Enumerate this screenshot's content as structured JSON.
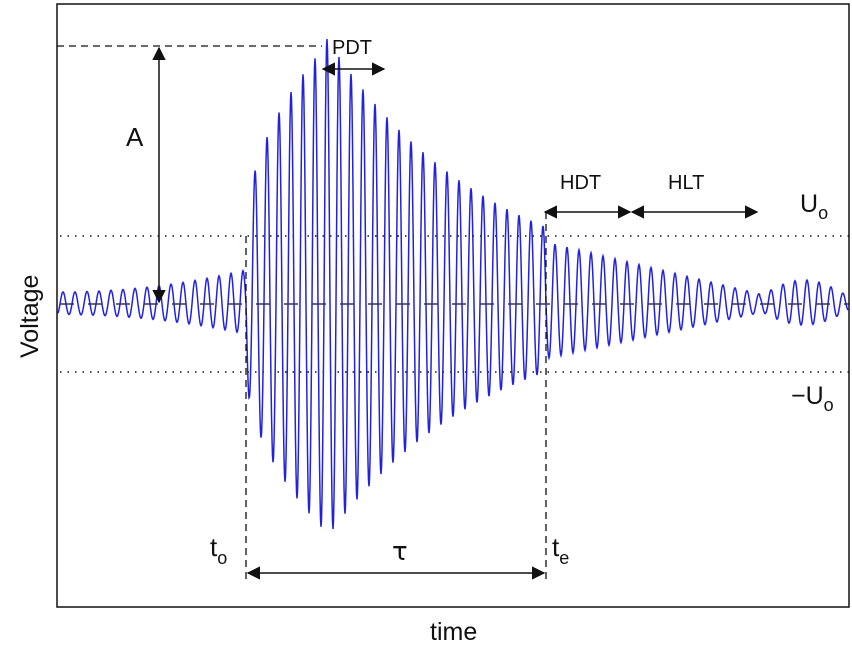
{
  "axes": {
    "xlabel": "time",
    "ylabel": "Voltage"
  },
  "annotations": {
    "amplitude": "A",
    "peak_definition_time": "PDT",
    "hit_definition_time": "HDT",
    "hit_lockout_time": "HLT",
    "duration": "τ",
    "threshold_pos": {
      "base": "U",
      "sub": "o"
    },
    "threshold_neg": {
      "base": "−U",
      "sub": "o"
    },
    "t_start": {
      "base": "t",
      "sub": "o"
    },
    "t_end": {
      "base": "t",
      "sub": "e"
    }
  },
  "colors": {
    "signal": "#2222dd",
    "annotation": "#111111"
  }
}
